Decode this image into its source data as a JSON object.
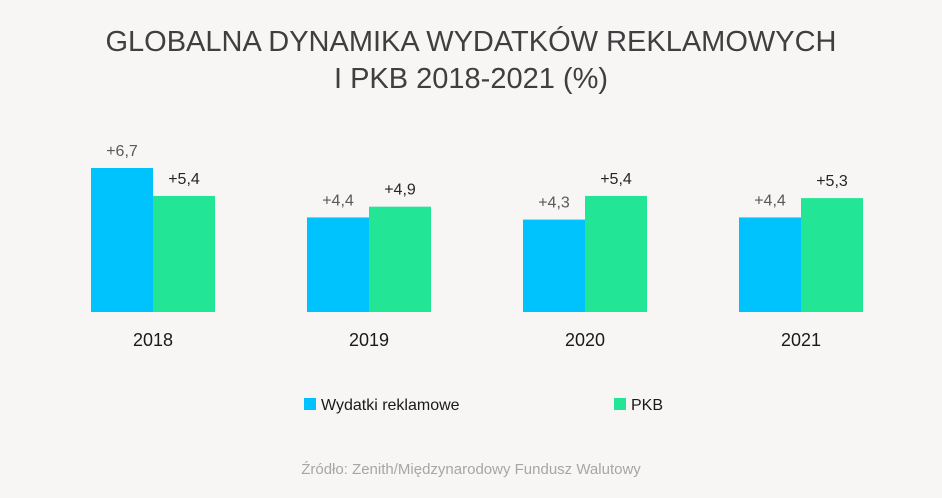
{
  "chart_data": {
    "type": "bar",
    "title_lines": [
      "GLOBALNA DYNAMIKA WYDATKÓW REKLAMOWYCH",
      "I PKB 2018-2021 (%)"
    ],
    "categories": [
      "2018",
      "2019",
      "2020",
      "2021"
    ],
    "series": [
      {
        "name": "Wydatki reklamowe",
        "color": "#00c3fd",
        "values": [
          6.7,
          4.4,
          4.3,
          4.4
        ],
        "labels": [
          "+6,7",
          "+4,4",
          "+4,3",
          "+4,4"
        ]
      },
      {
        "name": "PKB",
        "color": "#22e695",
        "values": [
          5.4,
          4.9,
          5.4,
          5.3
        ],
        "labels": [
          "+5,4",
          "+4,9",
          "+5,4",
          "+5,3"
        ]
      }
    ],
    "ylim": [
      0,
      7
    ],
    "grid": false,
    "legend_position": "bottom",
    "source": "Źródło: Zenith/Międzynarodowy Fundusz Walutowy"
  }
}
